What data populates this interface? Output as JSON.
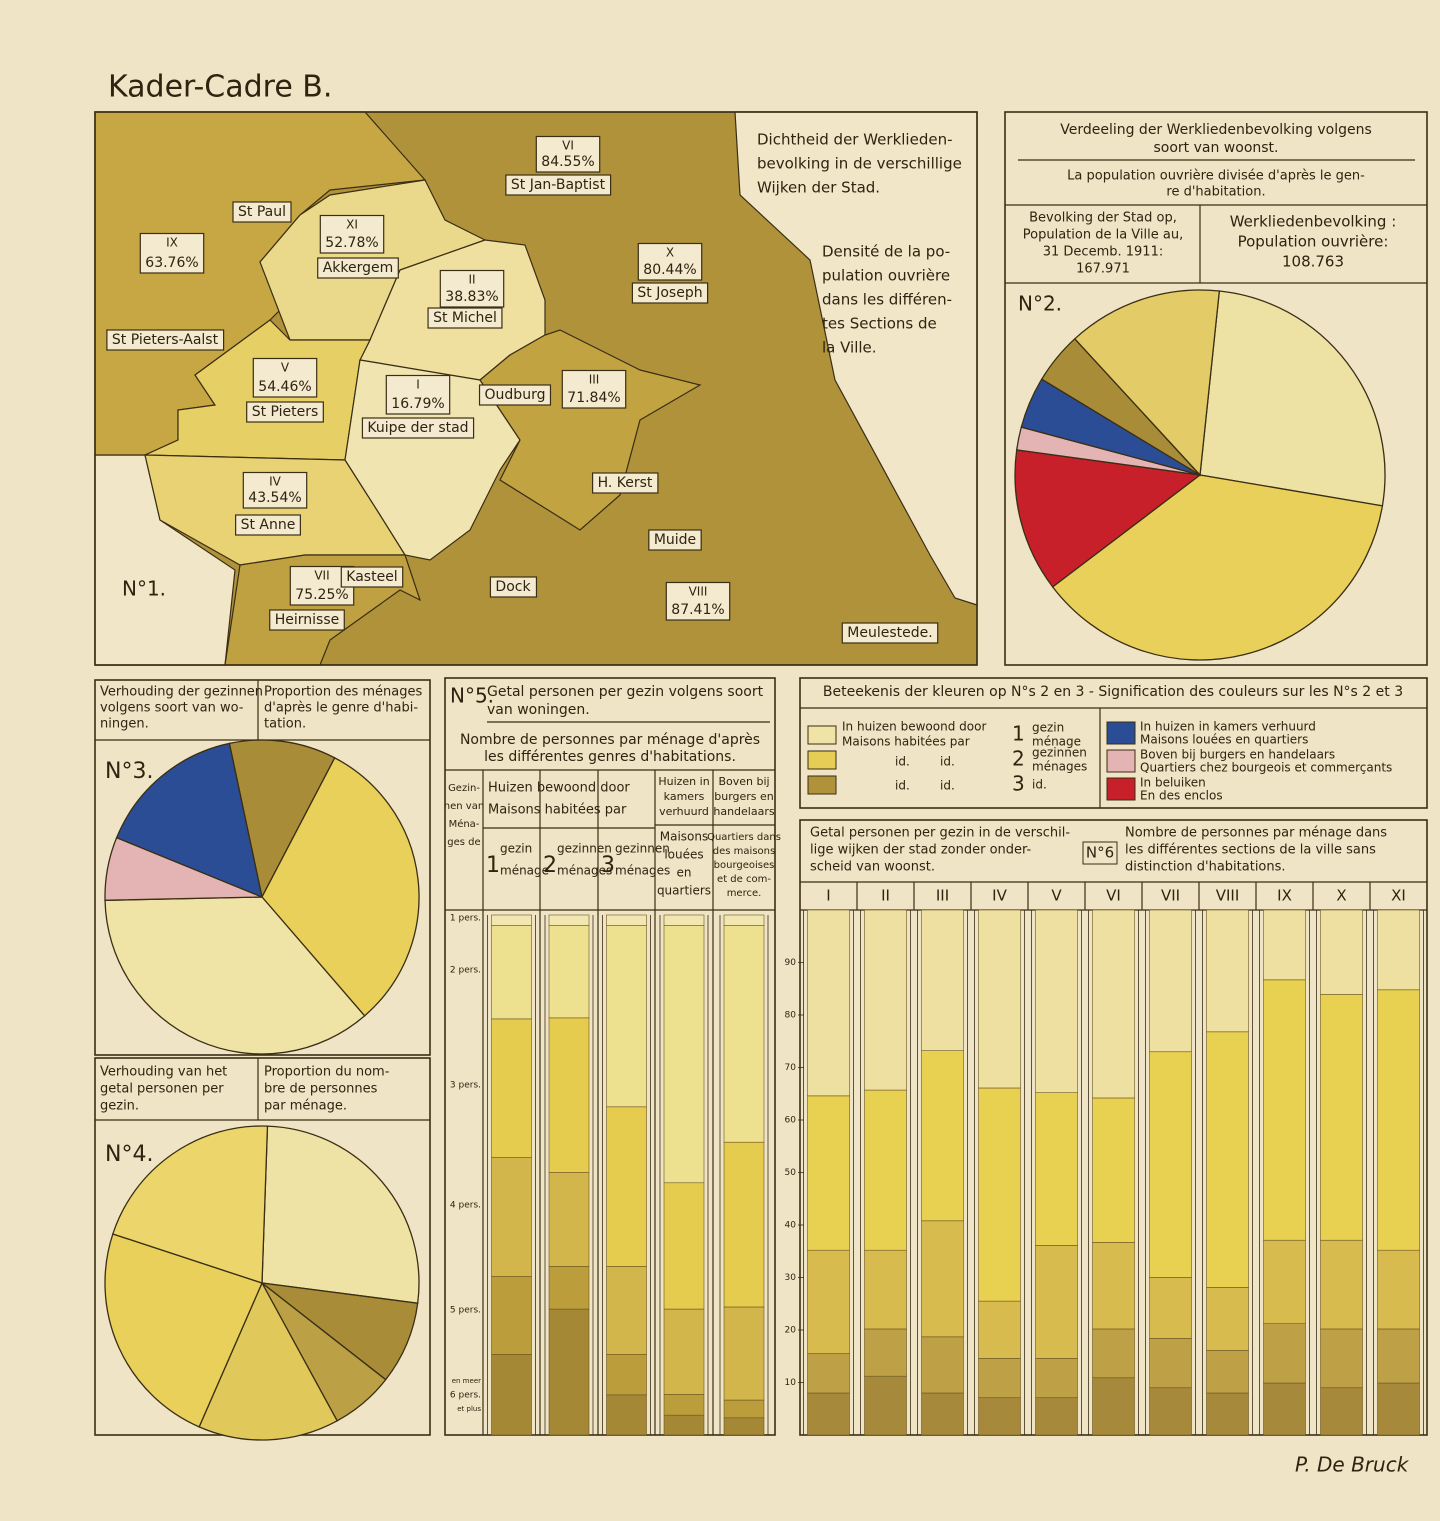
{
  "title": "Kader-Cadre B.",
  "signature": "P. De Bruck",
  "map": {
    "label": "N°1.",
    "caption_nl": [
      "Dichtheid der Werklieden-",
      "bevolking in de verschillige",
      "Wijken der Stad."
    ],
    "caption_fr": [
      "Densité de la po-",
      "pulation ouvrière",
      "dans les différen-",
      "tes Sections de",
      "la Ville."
    ],
    "sections": [
      {
        "numeral": "VI",
        "percent": "84.55%",
        "name": "St Jan-Baptist"
      },
      {
        "numeral": "XI",
        "percent": "52.78%",
        "name": "Akkergem"
      },
      {
        "numeral": "IX",
        "percent": "63.76%"
      },
      {
        "numeral": "II",
        "percent": "38.83%",
        "name": "St Michel"
      },
      {
        "numeral": "X",
        "percent": "80.44%",
        "name": "St Joseph"
      },
      {
        "numeral": "V",
        "percent": "54.46%",
        "name": "St Pieters"
      },
      {
        "numeral": "I",
        "percent": "16.79%",
        "name": "Kuipe der stad"
      },
      {
        "numeral": "III",
        "percent": "71.84%"
      },
      {
        "numeral": "IV",
        "percent": "43.54%",
        "name": "St Anne"
      },
      {
        "numeral": "VII",
        "percent": "75.25%",
        "name": "Heirnisse"
      },
      {
        "numeral": "VIII",
        "percent": "87.41%"
      }
    ],
    "places": [
      "St Paul",
      "St Pieters-Aalst",
      "Oudburg",
      "H. Kerst",
      "Muide",
      "Dock",
      "Kasteel",
      "Meulestede."
    ]
  },
  "legend": {
    "title": "Beteekenis der kleuren op N°s 2 en 3 - Signification des couleurs sur les N°s 2 et 3",
    "houses": [
      "In huizen bewoond door",
      "Maisons habitées par"
    ],
    "id_rows": [
      [
        "id.",
        "id."
      ],
      [
        "id.",
        "id."
      ]
    ],
    "household_entries": [
      {
        "color": "#efe3a6",
        "number": "1",
        "text": [
          "gezin",
          "ménage"
        ]
      },
      {
        "color": "#e6cd55",
        "number": "2",
        "text": [
          "gezinnen",
          "ménages"
        ]
      },
      {
        "color": "#b0923a",
        "number": "3",
        "text": [
          "id."
        ]
      }
    ],
    "other_entries": [
      {
        "color": "#2b4d95",
        "text": [
          "In huizen in kamers verhuurd",
          "Maisons louées en quartiers"
        ]
      },
      {
        "color": "#e4b4b4",
        "text": [
          "Boven bij burgers en handelaars",
          "Quartiers chez bourgeois et commerçants"
        ]
      },
      {
        "color": "#c8202a",
        "text": [
          "In beluiken",
          "En des enclos"
        ]
      }
    ]
  },
  "chart_data": [
    {
      "type": "pie",
      "label": "N°2.",
      "title": [
        "Verdeeling der Werkliedenbevolking volgens",
        "soort van woonst."
      ],
      "subtitle": [
        "La population ouvrière divisée d'après le gen-",
        "re d'habitation."
      ],
      "population_city": [
        "Bevolking der Stad op,",
        "Population de la Ville au,",
        "31 Decemb. 1911:",
        "167.971"
      ],
      "population_workers": [
        "Werkliedenbevolking :",
        "Population ouvrière:",
        "108.763"
      ],
      "values": [
        26,
        37,
        12.5,
        2,
        4.5,
        4.5,
        13.5
      ],
      "colors": [
        "#eee1a4",
        "#e8d05a",
        "#c8202a",
        "#e4b4b4",
        "#2b4d95",
        "#a88c38",
        "#e3cb68"
      ]
    },
    {
      "type": "pie",
      "label": "N°3.",
      "title": [
        "Verhouding der gezinnen",
        "volgens soort van wo-",
        "ningen."
      ],
      "subtitle": [
        "Proportion des ménages",
        "d'après le genre d'habi-",
        "tation."
      ],
      "values": [
        11,
        31,
        36,
        6.5,
        15.5
      ],
      "colors": [
        "#a88c38",
        "#e8d05a",
        "#efe3a6",
        "#e4b4b4",
        "#2b4d95"
      ]
    },
    {
      "type": "pie",
      "label": "N°4.",
      "title": [
        "Verhouding van het",
        "getal personen per",
        "gezin."
      ],
      "subtitle": [
        "Proportion du nom-",
        "bre de personnes",
        "par ménage."
      ],
      "values": [
        26.5,
        8.5,
        6.5,
        14.5,
        23.5,
        20.5
      ],
      "colors": [
        "#eee2a4",
        "#a88c38",
        "#bca045",
        "#e0c95a",
        "#e8d05a",
        "#ecd66c"
      ]
    },
    {
      "type": "stacked-column",
      "label": "N°5.",
      "stack_from": "top",
      "title": [
        "Getal personen per gezin volgens soort",
        "van woningen."
      ],
      "subtitle": [
        "Nombre de personnes par ménage d'après",
        "les différentes genres d'habitations."
      ],
      "row_header": [
        "Gezin-",
        "nen van",
        "Ména-",
        "ges de"
      ],
      "group_header": [
        "Huizen bewoond door",
        "Maisons habitées par"
      ],
      "categories": [
        [
          "1",
          "gezin",
          "ménage"
        ],
        [
          "2",
          "gezinnen",
          "ménages"
        ],
        [
          "3",
          "gezinnen",
          "ménages"
        ],
        [
          "Maisons",
          "louées",
          "en",
          "quartiers"
        ],
        [
          "Quartiers dans",
          "des maisons",
          "bourgeoises",
          "et de com-",
          "merce."
        ]
      ],
      "category_headers": [
        [
          "Huizen in",
          "kamers",
          "verhuurd"
        ],
        [
          "Boven bij",
          "burgers en",
          "handelaars"
        ]
      ],
      "ylim": [
        0,
        100
      ],
      "series": [
        {
          "name": "1 pers.",
          "color": "#f2e7b0",
          "values": [
            2,
            2,
            2,
            2,
            2
          ]
        },
        {
          "name": "2 pers.",
          "color": "#ede08f",
          "values": [
            18,
            17.8,
            34.9,
            49.5,
            41.7
          ]
        },
        {
          "name": "3 pers.",
          "color": "#e5cc4e",
          "values": [
            26.6,
            29.7,
            30.7,
            24.3,
            31.7
          ]
        },
        {
          "name": "4 pers.",
          "color": "#d2b64c",
          "values": [
            22.9,
            18.1,
            16.9,
            16.4,
            17.9
          ]
        },
        {
          "name": "5 pers.",
          "color": "#bb9d3c",
          "values": [
            15,
            8.2,
            7.8,
            4,
            3.4
          ]
        },
        {
          "name": "6 pers.",
          "name_note": [
            "en meer",
            "et plus"
          ],
          "color": "#a48836",
          "values": [
            15.5,
            24.2,
            7.7,
            3.8,
            3.3
          ]
        }
      ]
    },
    {
      "type": "stacked-column",
      "label": "N°6",
      "stack_from": "bottom",
      "title": [
        "Getal personen per gezin in de verschil-",
        "lige wijken der stad zonder onder-",
        "scheid van woonst."
      ],
      "subtitle": [
        "Nombre de personnes par ménage dans",
        "les différentes sections de la ville sans",
        "distinction d'habitations."
      ],
      "categories": [
        "I",
        "II",
        "III",
        "IV",
        "V",
        "VI",
        "VII",
        "VIII",
        "IX",
        "X",
        "XI"
      ],
      "ylim": [
        0,
        100
      ],
      "yticks": [
        10,
        20,
        30,
        40,
        50,
        60,
        70,
        80,
        90
      ],
      "series": [
        {
          "color": "#a6893a",
          "values": [
            8,
            11.2,
            8,
            7.1,
            7.1,
            10.9,
            9,
            8,
            9.9,
            9,
            9.9
          ]
        },
        {
          "color": "#bea046",
          "values": [
            7.5,
            9,
            10.7,
            7.5,
            7.5,
            9.3,
            9.4,
            8.1,
            11.3,
            11.2,
            10.3
          ]
        },
        {
          "color": "#d8bb4e",
          "values": [
            19.7,
            15,
            22.1,
            10.9,
            21.5,
            16.5,
            11.6,
            12,
            15.9,
            16.9,
            15
          ]
        },
        {
          "color": "#e8d050",
          "values": [
            29.4,
            30.5,
            32.4,
            40.6,
            29.1,
            27.5,
            43,
            48.7,
            49.6,
            46.8,
            49.6
          ]
        },
        {
          "color": "#eee0a0",
          "values": [
            35.4,
            34.3,
            26.8,
            33.9,
            34.8,
            35.8,
            27,
            23.2,
            13.3,
            16.1,
            15.2
          ]
        }
      ]
    }
  ]
}
